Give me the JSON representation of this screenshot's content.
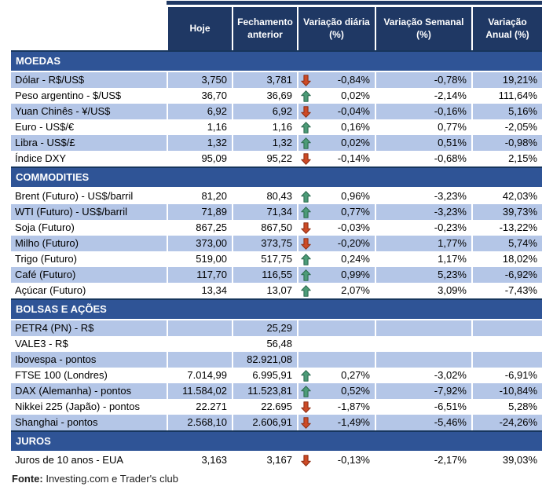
{
  "chart_data": {
    "type": "table",
    "columns": [
      "Hoje",
      "Fechamento anterior",
      "Variação diária (%)",
      "Variação Semanal (%)",
      "Variação Anual (%)"
    ],
    "sections": [
      {
        "title": "MOEDAS",
        "rows": [
          {
            "label": "Dólar - R$/US$",
            "hoje": "3,750",
            "fechamento": "3,781",
            "arrow": "down",
            "diaria": "-0,84%",
            "semanal": "-0,78%",
            "anual": "19,21%",
            "shaded": true
          },
          {
            "label": "Peso argentino - $/US$",
            "hoje": "36,70",
            "fechamento": "36,69",
            "arrow": "up",
            "diaria": "0,02%",
            "semanal": "-2,14%",
            "anual": "111,64%",
            "shaded": false
          },
          {
            "label": "Yuan Chinês - ¥/US$",
            "hoje": "6,92",
            "fechamento": "6,92",
            "arrow": "down",
            "diaria": "-0,04%",
            "semanal": "-0,16%",
            "anual": "5,16%",
            "shaded": true
          },
          {
            "label": "Euro - US$/€",
            "hoje": "1,16",
            "fechamento": "1,16",
            "arrow": "up",
            "diaria": "0,16%",
            "semanal": "0,77%",
            "anual": "-2,05%",
            "shaded": false
          },
          {
            "label": "Libra - US$/£",
            "hoje": "1,32",
            "fechamento": "1,32",
            "arrow": "up",
            "diaria": "0,02%",
            "semanal": "0,51%",
            "anual": "-0,98%",
            "shaded": true
          },
          {
            "label": "Índice DXY",
            "hoje": "95,09",
            "fechamento": "95,22",
            "arrow": "down",
            "diaria": "-0,14%",
            "semanal": "-0,68%",
            "anual": "2,15%",
            "shaded": false
          }
        ]
      },
      {
        "title": "COMMODITIES",
        "rows": [
          {
            "label": "Brent (Futuro) - US$/barril",
            "hoje": "81,20",
            "fechamento": "80,43",
            "arrow": "up",
            "diaria": "0,96%",
            "semanal": "-3,23%",
            "anual": "42,03%",
            "shaded": false
          },
          {
            "label": "WTI (Futuro) - US$/barril",
            "hoje": "71,89",
            "fechamento": "71,34",
            "arrow": "up",
            "diaria": "0,77%",
            "semanal": "-3,23%",
            "anual": "39,73%",
            "shaded": true
          },
          {
            "label": "Soja (Futuro)",
            "hoje": "867,25",
            "fechamento": "867,50",
            "arrow": "down",
            "diaria": "-0,03%",
            "semanal": "-0,23%",
            "anual": "-13,22%",
            "shaded": false
          },
          {
            "label": "Milho (Futuro)",
            "hoje": "373,00",
            "fechamento": "373,75",
            "arrow": "down",
            "diaria": "-0,20%",
            "semanal": "1,77%",
            "anual": "5,74%",
            "shaded": true
          },
          {
            "label": "Trigo (Futuro)",
            "hoje": "519,00",
            "fechamento": "517,75",
            "arrow": "up",
            "diaria": "0,24%",
            "semanal": "1,17%",
            "anual": "18,02%",
            "shaded": false
          },
          {
            "label": "Café (Futuro)",
            "hoje": "117,70",
            "fechamento": "116,55",
            "arrow": "up",
            "diaria": "0,99%",
            "semanal": "5,23%",
            "anual": "-6,92%",
            "shaded": true
          },
          {
            "label": "Açúcar (Futuro)",
            "hoje": "13,34",
            "fechamento": "13,07",
            "arrow": "up",
            "diaria": "2,07%",
            "semanal": "3,09%",
            "anual": "-7,43%",
            "shaded": false
          }
        ]
      },
      {
        "title": "BOLSAS E AÇÕES",
        "rows": [
          {
            "label": "PETR4 (PN) - R$",
            "hoje": "",
            "fechamento": "25,29",
            "arrow": "",
            "diaria": "",
            "semanal": "",
            "anual": "",
            "shaded": true
          },
          {
            "label": "VALE3 - R$",
            "hoje": "",
            "fechamento": "56,48",
            "arrow": "",
            "diaria": "",
            "semanal": "",
            "anual": "",
            "shaded": false
          },
          {
            "label": "Ibovespa - pontos",
            "hoje": "",
            "fechamento": "82.921,08",
            "arrow": "",
            "diaria": "",
            "semanal": "",
            "anual": "",
            "shaded": true
          },
          {
            "label": "FTSE 100 (Londres)",
            "hoje": "7.014,99",
            "fechamento": "6.995,91",
            "arrow": "up",
            "diaria": "0,27%",
            "semanal": "-3,02%",
            "anual": "-6,91%",
            "shaded": false
          },
          {
            "label": "DAX (Alemanha) - pontos",
            "hoje": "11.584,02",
            "fechamento": "11.523,81",
            "arrow": "up",
            "diaria": "0,52%",
            "semanal": "-7,92%",
            "anual": "-10,84%",
            "shaded": true
          },
          {
            "label": "Nikkei 225 (Japão) - pontos",
            "hoje": "22.271",
            "fechamento": "22.695",
            "arrow": "down",
            "diaria": "-1,87%",
            "semanal": "-6,51%",
            "anual": "5,28%",
            "shaded": false
          },
          {
            "label": "Shanghai - pontos",
            "hoje": "2.568,10",
            "fechamento": "2.606,91",
            "arrow": "down",
            "diaria": "-1,49%",
            "semanal": "-5,46%",
            "anual": "-24,26%",
            "shaded": true
          }
        ]
      },
      {
        "title": "JUROS",
        "rows": [
          {
            "label": "Juros de 10 anos - EUA",
            "hoje": "3,163",
            "fechamento": "3,167",
            "arrow": "down",
            "diaria": "-0,13%",
            "semanal": "-2,17%",
            "anual": "39,03%",
            "shaded": false
          }
        ]
      }
    ]
  },
  "footer": {
    "source_label": "Fonte:",
    "source_text": "Investing.com e Trader's club"
  },
  "colors": {
    "header_bg": "#1F3864",
    "section_bg": "#2F5496",
    "section_top_border": "#17365D",
    "row_shaded_bg": "#B4C6E7",
    "header_text": "#FFFFFF",
    "up_arrow": "#4C9C77",
    "up_arrow_outline": "#2F6B51",
    "down_arrow": "#CD4A26",
    "down_arrow_outline": "#8F3016"
  },
  "icons": {
    "up": "up-arrow-icon",
    "down": "down-arrow-icon"
  }
}
